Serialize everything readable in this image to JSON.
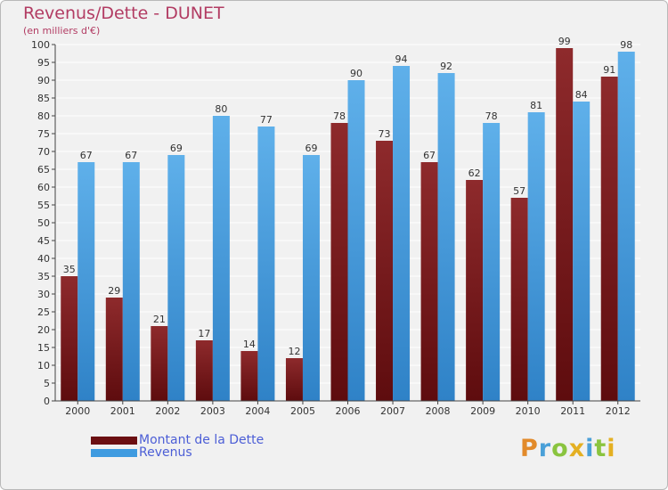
{
  "title": "Revenus/Dette - DUNET",
  "subtitle": "(en milliers d'€)",
  "chart_data": {
    "type": "bar",
    "title": "Revenus/Dette - DUNET",
    "ylabel": "(en milliers d'€)",
    "xlabel": "",
    "ylim": [
      0,
      100
    ],
    "ytick_step": 5,
    "grid": true,
    "legend_position": "bottom-left",
    "categories": [
      "2000",
      "2001",
      "2002",
      "2003",
      "2004",
      "2005",
      "2006",
      "2007",
      "2008",
      "2009",
      "2010",
      "2011",
      "2012"
    ],
    "series": [
      {
        "name": "Montant de la Dette",
        "color": "#7a1a1c",
        "values": [
          35,
          29,
          21,
          17,
          14,
          12,
          78,
          73,
          67,
          62,
          57,
          99,
          91
        ]
      },
      {
        "name": "Revenus",
        "color": "#4aa3e3",
        "values": [
          67,
          67,
          69,
          80,
          77,
          69,
          90,
          94,
          92,
          78,
          81,
          84,
          98
        ]
      }
    ]
  },
  "legend": {
    "debt_label": "Montant de la Dette",
    "revenue_label": "Revenus",
    "debt_color": "#6b0f12",
    "revenue_color": "#3f9be0"
  },
  "logo": {
    "letters": [
      "P",
      "r",
      "o",
      "x",
      "i",
      "t",
      "i"
    ],
    "colors": [
      "#e28a2a",
      "#4aa0d8",
      "#8ac43f",
      "#e4b022",
      "#4aa0d8",
      "#8ac43f",
      "#e4b022"
    ]
  }
}
